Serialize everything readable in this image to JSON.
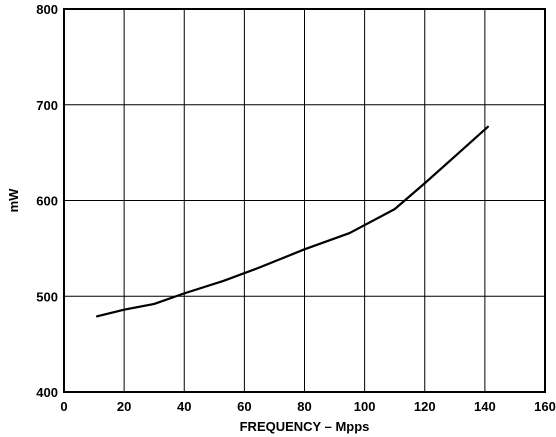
{
  "chart_data": {
    "type": "line",
    "title": "",
    "xlabel": "FREQUENCY – Mpps",
    "ylabel": "mW",
    "xlim": [
      0,
      160
    ],
    "ylim": [
      400,
      800
    ],
    "xticks": [
      0,
      20,
      40,
      60,
      80,
      100,
      120,
      140,
      160
    ],
    "yticks": [
      400,
      500,
      600,
      700,
      800
    ],
    "grid": true,
    "legend": "none",
    "series": [
      {
        "x": [
          11,
          20,
          30,
          40,
          53,
          65,
          80,
          95,
          110,
          120,
          130,
          141
        ],
        "y": [
          479,
          486,
          492,
          503,
          516,
          530,
          549,
          566,
          591,
          618,
          646,
          677
        ]
      }
    ]
  }
}
